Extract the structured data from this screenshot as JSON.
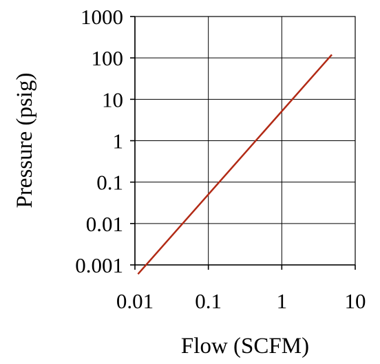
{
  "chart_data": {
    "type": "line",
    "x_scale": "log",
    "y_scale": "log",
    "xlabel": "Flow (SCFM)",
    "ylabel": "Pressure (psig)",
    "xlim": [
      0.01,
      10
    ],
    "ylim": [
      0.001,
      1000
    ],
    "x_ticks": [
      {
        "value": 0.01,
        "label": "0.01"
      },
      {
        "value": 0.1,
        "label": "0.1"
      },
      {
        "value": 1,
        "label": "1"
      },
      {
        "value": 10,
        "label": "10"
      }
    ],
    "y_ticks": [
      {
        "value": 0.001,
        "label": "0.001"
      },
      {
        "value": 0.01,
        "label": "0.01"
      },
      {
        "value": 0.1,
        "label": "0.1"
      },
      {
        "value": 1,
        "label": "1"
      },
      {
        "value": 10,
        "label": "10"
      },
      {
        "value": 100,
        "label": "100"
      },
      {
        "value": 1000,
        "label": "1000"
      }
    ],
    "grid": true,
    "legend": "none",
    "series": [
      {
        "color": "#b22a15",
        "points": [
          {
            "x": 0.011,
            "y": 0.0006
          },
          {
            "x": 4.8,
            "y": 120
          }
        ]
      }
    ]
  }
}
